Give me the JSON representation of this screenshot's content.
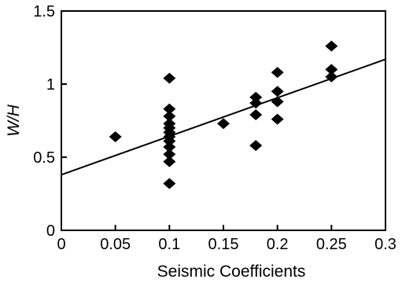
{
  "chart_data": {
    "type": "scatter",
    "title": "",
    "xlabel": "Seismic Coefficients",
    "ylabel": "W/H",
    "xlim": [
      0,
      0.3
    ],
    "ylim": [
      0,
      1.5
    ],
    "x_ticks": [
      0,
      0.05,
      0.1,
      0.15,
      0.2,
      0.25,
      0.3
    ],
    "x_tick_labels": [
      "0",
      "0.05",
      "0.1",
      "0.15",
      "0.2",
      "0.25",
      "0.3"
    ],
    "y_ticks": [
      0,
      0.5,
      1,
      1.5
    ],
    "y_tick_labels": [
      "0",
      "0.5",
      "1",
      "1.5"
    ],
    "grid": false,
    "marker": "diamond",
    "marker_color": "#000000",
    "series": [
      {
        "points": [
          {
            "x": 0.05,
            "y": 0.64
          },
          {
            "x": 0.1,
            "y": 0.32
          },
          {
            "x": 0.1,
            "y": 0.47
          },
          {
            "x": 0.1,
            "y": 0.52
          },
          {
            "x": 0.1,
            "y": 0.57
          },
          {
            "x": 0.1,
            "y": 0.61
          },
          {
            "x": 0.1,
            "y": 0.64
          },
          {
            "x": 0.1,
            "y": 0.67
          },
          {
            "x": 0.1,
            "y": 0.7
          },
          {
            "x": 0.1,
            "y": 0.73
          },
          {
            "x": 0.1,
            "y": 0.78
          },
          {
            "x": 0.1,
            "y": 0.83
          },
          {
            "x": 0.1,
            "y": 1.04
          },
          {
            "x": 0.15,
            "y": 0.73
          },
          {
            "x": 0.18,
            "y": 0.58
          },
          {
            "x": 0.18,
            "y": 0.79
          },
          {
            "x": 0.18,
            "y": 0.87
          },
          {
            "x": 0.18,
            "y": 0.91
          },
          {
            "x": 0.2,
            "y": 0.76
          },
          {
            "x": 0.2,
            "y": 0.88
          },
          {
            "x": 0.2,
            "y": 0.95
          },
          {
            "x": 0.2,
            "y": 1.08
          },
          {
            "x": 0.25,
            "y": 1.05
          },
          {
            "x": 0.25,
            "y": 1.1
          },
          {
            "x": 0.25,
            "y": 1.26
          }
        ]
      }
    ],
    "trendline": {
      "type": "linear",
      "x": [
        0,
        0.3
      ],
      "y": [
        0.38,
        1.17
      ]
    }
  }
}
